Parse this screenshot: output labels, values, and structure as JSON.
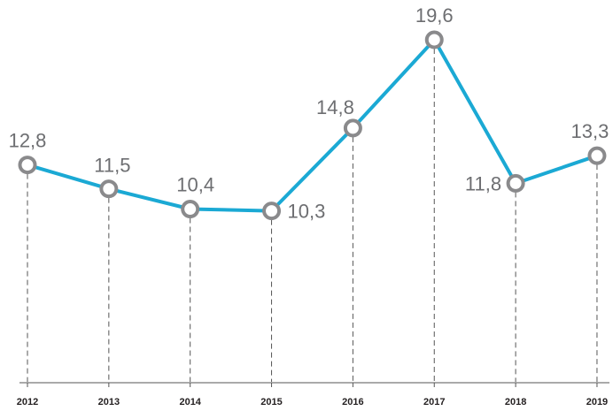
{
  "chart_data": {
    "type": "line",
    "categories": [
      "2012",
      "2013",
      "2014",
      "2015",
      "2016",
      "2017",
      "2018",
      "2019"
    ],
    "values": [
      12.8,
      11.5,
      10.4,
      10.3,
      14.8,
      19.6,
      11.8,
      13.3
    ],
    "data_labels": [
      "12,8",
      "11,5",
      "10,4",
      "10,3",
      "14,8",
      "19,6",
      "11,8",
      "13,3"
    ],
    "title": "",
    "xlabel": "",
    "ylabel": "",
    "grid": false,
    "legend": "none",
    "colors": {
      "line": "#1ba9d4",
      "marker_stroke": "#8a8a8c",
      "marker_fill": "#ffffff",
      "drop_line": "#555555",
      "axis": "#555555",
      "data_label": "#6d6e71",
      "tick_label": "#231f20"
    }
  }
}
